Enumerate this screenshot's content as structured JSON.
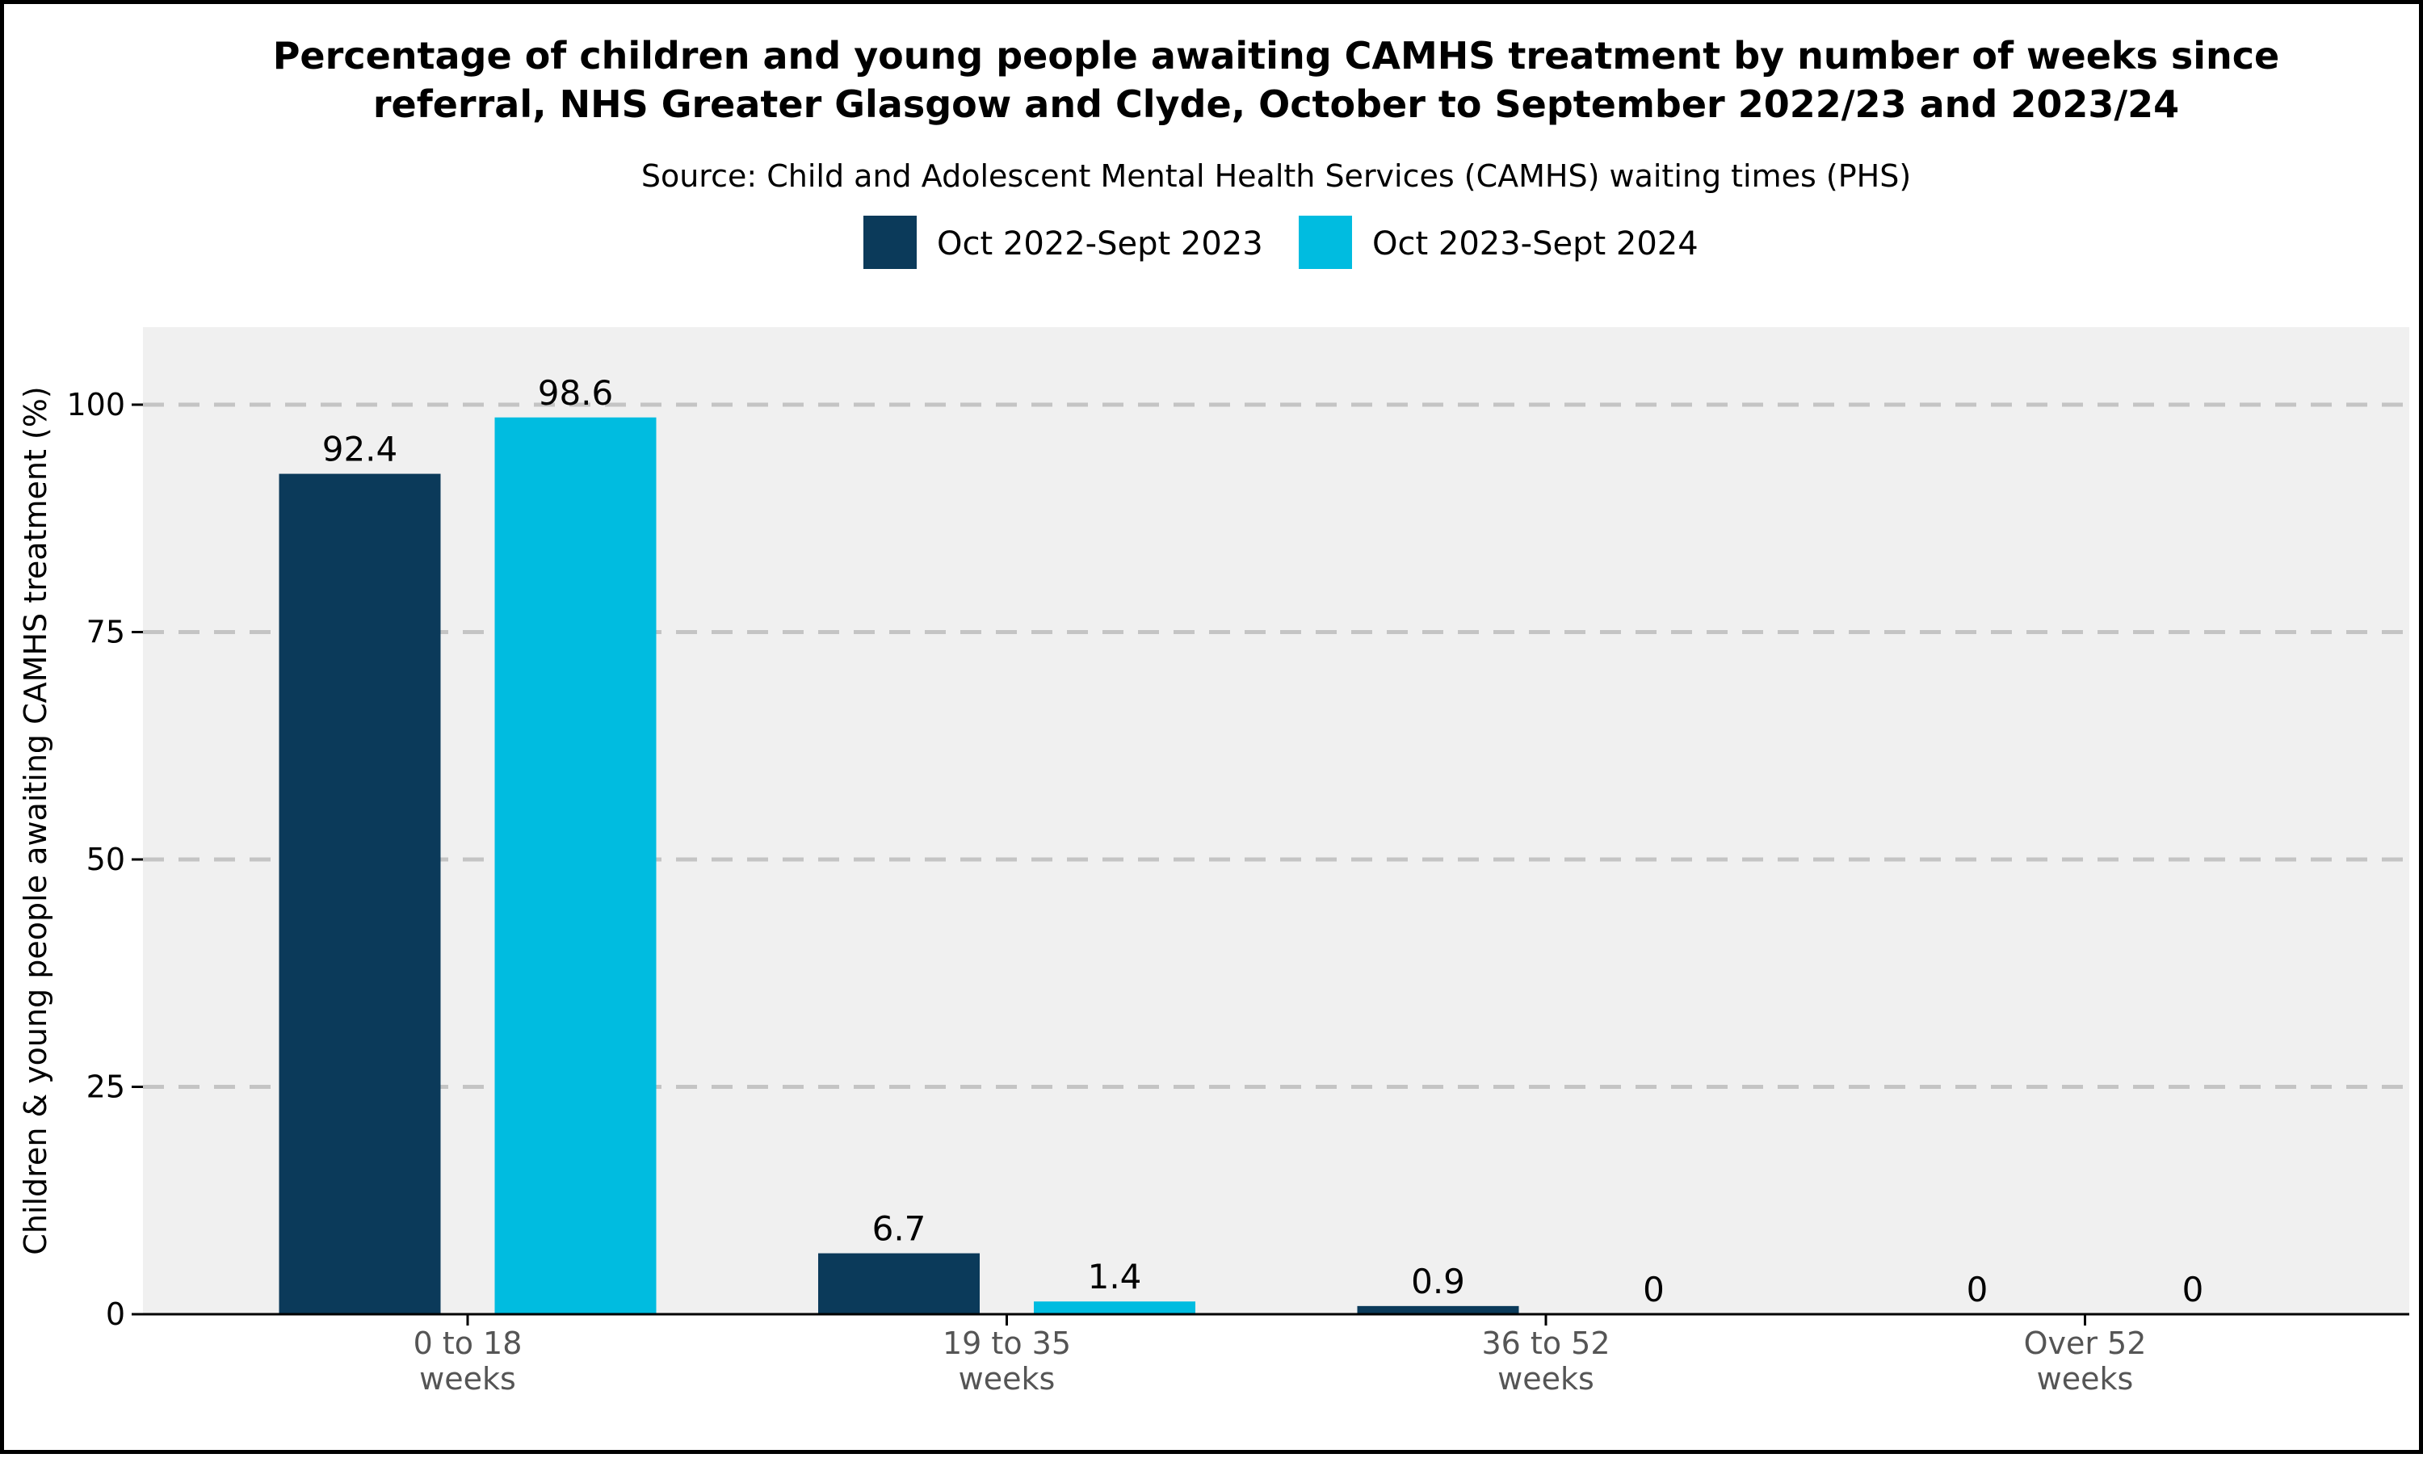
{
  "chart_data": {
    "type": "bar",
    "title_lines": [
      "Percentage of children and young people awaiting CAMHS treatment by number of weeks since",
      "referral, NHS Greater Glasgow and Clyde, October to September 2022/23 and 2023/24"
    ],
    "subtitle": "Source: Child and Adolescent Mental Health Services (CAMHS) waiting times (PHS)",
    "xlabel": "",
    "ylabel": "Children & young people awaiting CAMHS treatment (%)",
    "ylim": [
      0,
      108.5
    ],
    "yticks": [
      0,
      25,
      50,
      75,
      100
    ],
    "grid": "horizontal-dashed",
    "legend_position": "top",
    "categories": [
      [
        "0 to 18",
        "weeks"
      ],
      [
        "19 to 35",
        "weeks"
      ],
      [
        "36 to 52",
        "weeks"
      ],
      [
        "Over 52",
        "weeks"
      ]
    ],
    "series": [
      {
        "name": "Oct 2022-Sept 2023",
        "color": "#0b3a5a",
        "values": [
          92.4,
          6.7,
          0.9,
          0
        ],
        "labels": [
          "92.4",
          "6.7",
          "0.9",
          "0"
        ]
      },
      {
        "name": "Oct 2023-Sept 2024",
        "color": "#00bce0",
        "values": [
          98.6,
          1.4,
          0,
          0
        ],
        "labels": [
          "98.6",
          "1.4",
          "0",
          "0"
        ]
      }
    ],
    "colors": {
      "panel_background": "#f0f0f0",
      "gridline": "#c4c4c4"
    }
  }
}
